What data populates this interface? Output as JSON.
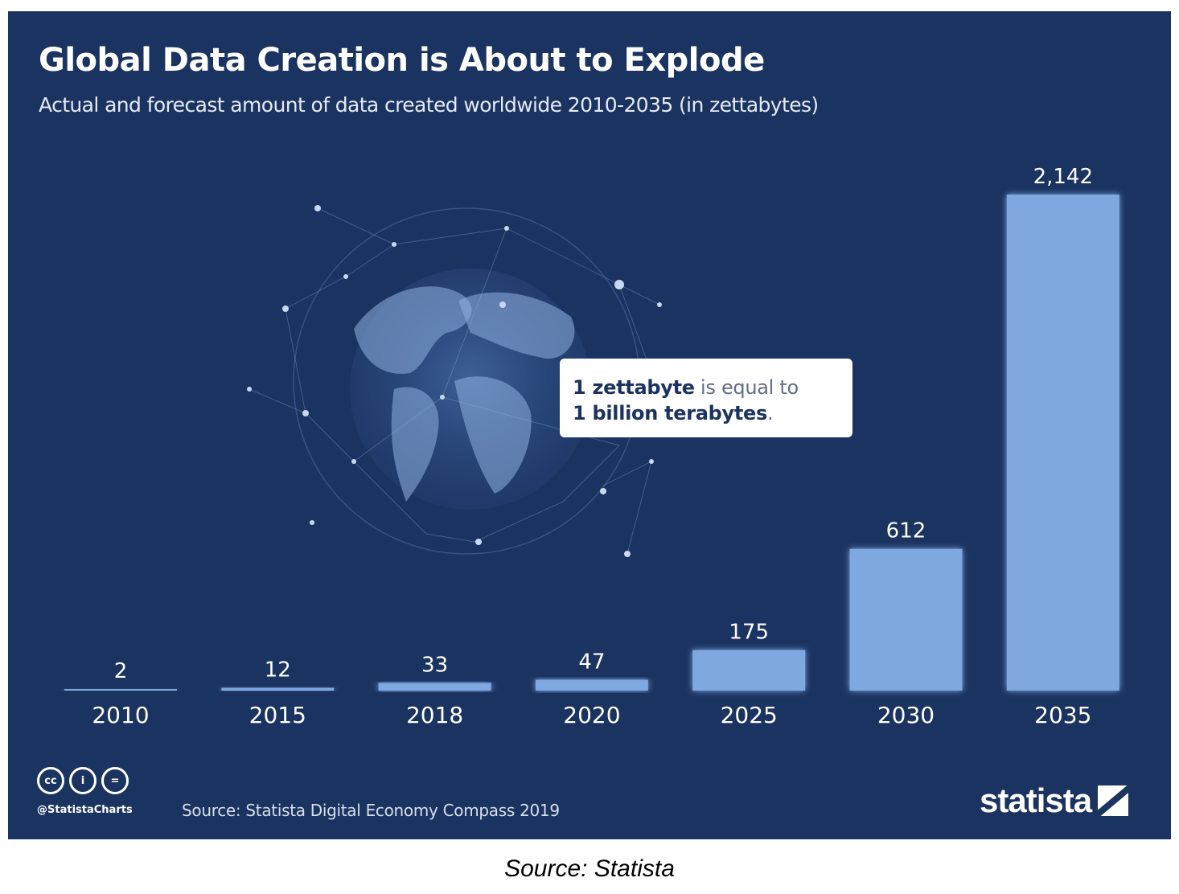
{
  "panel": {
    "title": "Global Data Creation is About to Explode",
    "subtitle": "Actual and forecast amount of data created worldwide 2010-2035 (in zettabytes)"
  },
  "callout": {
    "line1_bold": "1 zettabyte",
    "line1_rest": " is equal to",
    "line2_bold": "1 billion terabytes",
    "line2_rest": "."
  },
  "footer": {
    "handle": "@StatistaCharts",
    "source": "Source: Statista Digital Economy Compass 2019",
    "brand": "statista",
    "license_icons": [
      "cc",
      "by",
      "nd"
    ],
    "license_icon_text": [
      "cc",
      "i",
      "="
    ]
  },
  "caption": "Source: Statista",
  "colors": {
    "background": "#1b3360",
    "bar": "#7fa8e0",
    "text": "#ffffff"
  },
  "chart_data": {
    "type": "bar",
    "categories": [
      "2010",
      "2015",
      "2018",
      "2020",
      "2025",
      "2030",
      "2035"
    ],
    "values": [
      2,
      12,
      33,
      47,
      175,
      612,
      2142
    ],
    "value_labels": [
      "2",
      "12",
      "33",
      "47",
      "175",
      "612",
      "2,142"
    ],
    "title": "Global Data Creation is About to Explode",
    "subtitle": "Actual and forecast amount of data created worldwide 2010-2035 (in zettabytes)",
    "unit": "zettabytes",
    "ylim": [
      0,
      2142
    ],
    "grid": false,
    "legend": "none"
  }
}
